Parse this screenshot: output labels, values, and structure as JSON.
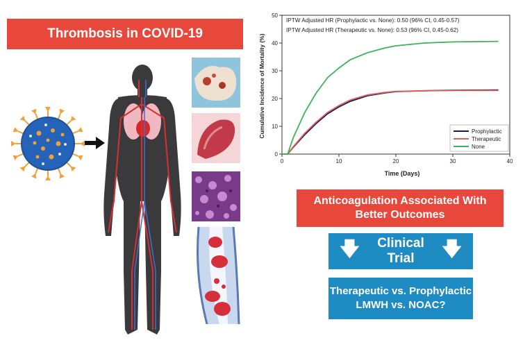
{
  "title": "Thrombosis in COVID-19",
  "anticoag_banner": [
    "Anticoagulation Associated With",
    "Better Outcomes"
  ],
  "trial_label": "Clinical Trial",
  "question": [
    "Therapeutic vs. Prophylactic",
    "LMWH vs. NOAC?"
  ],
  "colors": {
    "banner_red": "#e8483b",
    "box_blue": "#1e8bc3",
    "prophylactic": "#1a1a4a",
    "therapeutic": "#e06060",
    "none": "#3cb35a"
  },
  "chart_data": {
    "type": "line",
    "xlabel": "Time (Days)",
    "ylabel": "Cumulative Incidence of Mortality (%)",
    "xlim": [
      0,
      40
    ],
    "ylim": [
      0,
      50
    ],
    "xticks": [
      0,
      10,
      20,
      30,
      40
    ],
    "yticks": [
      0,
      10,
      20,
      30,
      40,
      50
    ],
    "annotations": [
      "IPTW Adjusted HR (Prophylactic vs. None): 0.50 (96% CI, 0.45-0.57)",
      "IPTW Adjusted HR (Therapeutic vs. None): 0.53 (96% CI, 0.45-0.62)"
    ],
    "legend_position": "bottom-right",
    "series": [
      {
        "name": "Prophylactic",
        "color": "#1a1a4a",
        "x": [
          1,
          2,
          4,
          6,
          8,
          10,
          12,
          15,
          18,
          20,
          25,
          30,
          38
        ],
        "values": [
          0,
          2.5,
          7,
          11,
          14.5,
          17,
          19,
          21,
          22,
          22.5,
          22.8,
          23,
          23.1
        ]
      },
      {
        "name": "Therapeutic",
        "color": "#e06060",
        "x": [
          1,
          2,
          4,
          6,
          8,
          10,
          12,
          15,
          18,
          20,
          25,
          30,
          38
        ],
        "values": [
          0,
          2.7,
          7.5,
          11.5,
          15,
          17.5,
          19.5,
          21.3,
          22.2,
          22.6,
          22.8,
          22.9,
          22.9
        ]
      },
      {
        "name": "None",
        "color": "#3cb35a",
        "x": [
          1,
          2,
          4,
          6,
          8,
          10,
          12,
          15,
          18,
          20,
          25,
          30,
          38
        ],
        "values": [
          0,
          6,
          15,
          22,
          27.5,
          31,
          34,
          36.5,
          38.2,
          39,
          40,
          40.4,
          40.6
        ]
      }
    ]
  }
}
